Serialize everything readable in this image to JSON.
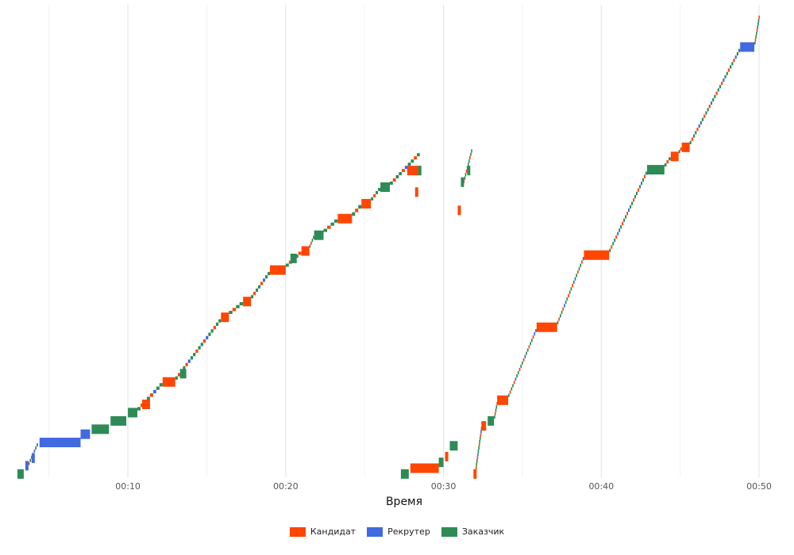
{
  "chart_data": {
    "type": "timeline",
    "xlabel": "Время",
    "x_ticks": [
      "00:10",
      "00:20",
      "00:30",
      "00:40",
      "00:50"
    ],
    "xlim_min": [
      2.8,
      50.2
    ],
    "grid": true,
    "legend_position": "bottom",
    "series": [
      {
        "name": "Кандидат",
        "color": "#FF4500"
      },
      {
        "name": "Рекрутер",
        "color": "#4169E1"
      },
      {
        "name": "Заказчик",
        "color": "#2E8B57"
      }
    ],
    "segments": [
      {
        "s": "Заказчик",
        "x0": 3.0,
        "x1": 3.4,
        "y": 4
      },
      {
        "s": "Рекрутер",
        "x0": 3.5,
        "x1": 3.7,
        "y": 14
      },
      {
        "s": "Рекрутер",
        "x0": 3.9,
        "x1": 4.1,
        "y": 23
      },
      {
        "s": "Рекрутер",
        "x0": 4.4,
        "x1": 7.0,
        "y": 42
      },
      {
        "s": "Рекрутер",
        "x0": 7.0,
        "x1": 7.6,
        "y": 52
      },
      {
        "s": "Заказчик",
        "x0": 7.7,
        "x1": 8.8,
        "y": 58
      },
      {
        "s": "Заказчик",
        "x0": 8.9,
        "x1": 9.9,
        "y": 68
      },
      {
        "s": "Заказчик",
        "x0": 10.0,
        "x1": 10.6,
        "y": 78
      },
      {
        "s": "Кандидат",
        "x0": 10.9,
        "x1": 11.4,
        "y": 88
      },
      {
        "s": "Кандидат",
        "x0": 12.2,
        "x1": 13.0,
        "y": 115
      },
      {
        "s": "Заказчик",
        "x0": 13.3,
        "x1": 13.7,
        "y": 125
      },
      {
        "s": "Кандидат",
        "x0": 15.9,
        "x1": 16.4,
        "y": 193
      },
      {
        "s": "Кандидат",
        "x0": 17.3,
        "x1": 17.8,
        "y": 212
      },
      {
        "s": "Кандидат",
        "x0": 19.0,
        "x1": 20.0,
        "y": 250
      },
      {
        "s": "Заказчик",
        "x0": 20.3,
        "x1": 20.7,
        "y": 264
      },
      {
        "s": "Кандидат",
        "x0": 21.0,
        "x1": 21.5,
        "y": 273
      },
      {
        "s": "Заказчик",
        "x0": 21.8,
        "x1": 22.4,
        "y": 292
      },
      {
        "s": "Кандидат",
        "x0": 23.3,
        "x1": 24.2,
        "y": 312
      },
      {
        "s": "Кандидат",
        "x0": 24.8,
        "x1": 25.4,
        "y": 330
      },
      {
        "s": "Заказчик",
        "x0": 26.0,
        "x1": 26.6,
        "y": 350
      },
      {
        "s": "Кандидат",
        "x0": 27.7,
        "x1": 28.5,
        "y": 370
      },
      {
        "s": "Кандидат",
        "x0": 28.2,
        "x1": 28.4,
        "y": 344
      },
      {
        "s": "Заказчик",
        "x0": 28.4,
        "x1": 28.6,
        "y": 370
      },
      {
        "s": "Кандидат",
        "x0": 30.9,
        "x1": 31.1,
        "y": 322
      },
      {
        "s": "Заказчик",
        "x0": 31.1,
        "x1": 31.3,
        "y": 356
      },
      {
        "s": "Заказчик",
        "x0": 31.5,
        "x1": 31.7,
        "y": 370
      },
      {
        "s": "Заказчик",
        "x0": 27.3,
        "x1": 27.8,
        "y": 4
      },
      {
        "s": "Кандидат",
        "x0": 27.9,
        "x1": 29.7,
        "y": 11
      },
      {
        "s": "Заказчик",
        "x0": 29.7,
        "x1": 30.0,
        "y": 18
      },
      {
        "s": "Кандидат",
        "x0": 30.1,
        "x1": 30.3,
        "y": 25
      },
      {
        "s": "Заказчик",
        "x0": 30.4,
        "x1": 30.9,
        "y": 38
      },
      {
        "s": "Кандидат",
        "x0": 31.9,
        "x1": 32.1,
        "y": 4
      },
      {
        "s": "Кандидат",
        "x0": 32.4,
        "x1": 32.7,
        "y": 62
      },
      {
        "s": "Заказчик",
        "x0": 32.8,
        "x1": 33.2,
        "y": 68
      },
      {
        "s": "Кандидат",
        "x0": 33.4,
        "x1": 34.1,
        "y": 93
      },
      {
        "s": "Кандидат",
        "x0": 35.9,
        "x1": 37.2,
        "y": 181
      },
      {
        "s": "Кандидат",
        "x0": 38.9,
        "x1": 40.5,
        "y": 268
      },
      {
        "s": "Заказчик",
        "x0": 42.9,
        "x1": 44.0,
        "y": 371
      },
      {
        "s": "Кандидат",
        "x0": 44.4,
        "x1": 44.9,
        "y": 387
      },
      {
        "s": "Кандидат",
        "x0": 45.1,
        "x1": 45.6,
        "y": 398
      },
      {
        "s": "Рекрутер",
        "x0": 48.8,
        "x1": 49.7,
        "y": 519
      }
    ],
    "paths": [
      {
        "x0": 3.6,
        "y0": 10,
        "x1": 4.3,
        "y1": 40
      },
      {
        "x0": 10.6,
        "y0": 80,
        "x1": 12.2,
        "y1": 113
      },
      {
        "x0": 13.0,
        "y0": 117,
        "x1": 15.9,
        "y1": 190
      },
      {
        "x0": 16.4,
        "y0": 196,
        "x1": 17.3,
        "y1": 210
      },
      {
        "x0": 17.8,
        "y0": 215,
        "x1": 19.0,
        "y1": 247
      },
      {
        "x0": 20.0,
        "y0": 253,
        "x1": 21.0,
        "y1": 271
      },
      {
        "x0": 21.5,
        "y0": 276,
        "x1": 21.8,
        "y1": 290
      },
      {
        "x0": 22.4,
        "y0": 295,
        "x1": 23.3,
        "y1": 310
      },
      {
        "x0": 24.2,
        "y0": 315,
        "x1": 24.8,
        "y1": 328
      },
      {
        "x0": 25.4,
        "y0": 333,
        "x1": 26.0,
        "y1": 348
      },
      {
        "x0": 26.6,
        "y0": 352,
        "x1": 28.5,
        "y1": 390
      },
      {
        "x0": 31.2,
        "y0": 350,
        "x1": 31.8,
        "y1": 395
      },
      {
        "x0": 32.0,
        "y0": 5,
        "x1": 32.4,
        "y1": 60
      },
      {
        "x0": 33.2,
        "y0": 70,
        "x1": 33.4,
        "y1": 90
      },
      {
        "x0": 34.1,
        "y0": 96,
        "x1": 35.9,
        "y1": 178
      },
      {
        "x0": 37.2,
        "y0": 184,
        "x1": 38.9,
        "y1": 265
      },
      {
        "x0": 40.5,
        "y0": 271,
        "x1": 42.9,
        "y1": 368
      },
      {
        "x0": 44.0,
        "y0": 374,
        "x1": 44.4,
        "y1": 385
      },
      {
        "x0": 44.9,
        "y0": 390,
        "x1": 45.1,
        "y1": 396
      },
      {
        "x0": 45.6,
        "y0": 401,
        "x1": 48.8,
        "y1": 516
      },
      {
        "x0": 49.7,
        "y0": 521,
        "x1": 50.0,
        "y1": 556
      }
    ]
  }
}
